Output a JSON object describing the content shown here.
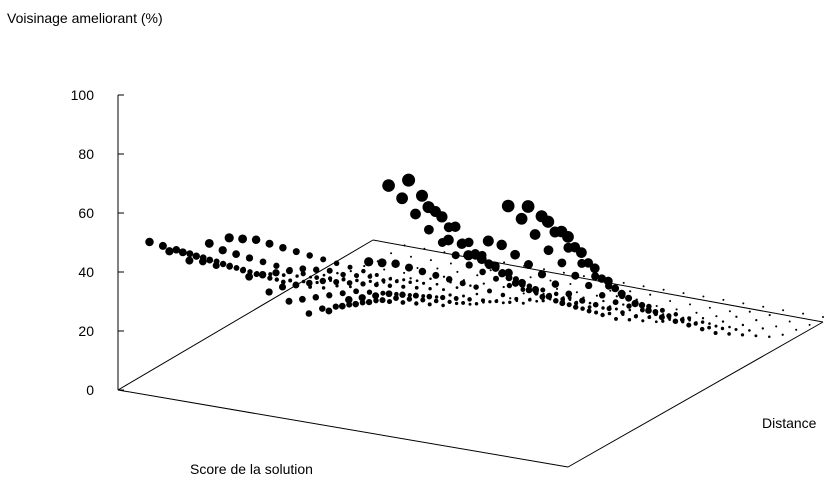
{
  "chart_data": {
    "type": "scatter",
    "title": "",
    "zlabel": "Voisinage ameliorant (%)",
    "xlabel": "Score de la solution",
    "ylabel": "Distance",
    "zlim": [
      0,
      100
    ],
    "zticks": [
      "0",
      "20",
      "40",
      "60",
      "80",
      "100"
    ],
    "grid": false,
    "legend": "none",
    "point_color": "#000000",
    "rows": [
      {
        "distance": 1,
        "values": [
          52,
          50,
          48,
          55,
          58,
          46,
          42,
          40,
          37,
          39,
          44,
          58,
          85,
          88,
          80,
          70,
          66,
          72,
          85,
          86,
          82,
          78
        ]
      },
      {
        "distance": 2,
        "values": [
          48,
          47,
          45,
          50,
          55,
          44,
          41,
          38,
          36,
          38,
          42,
          55,
          78,
          80,
          74,
          66,
          62,
          68,
          78,
          80,
          76,
          70
        ]
      },
      {
        "distance": 3,
        "values": [
          44,
          43,
          41,
          46,
          52,
          42,
          39,
          36,
          34,
          36,
          40,
          52,
          70,
          72,
          68,
          60,
          57,
          62,
          70,
          72,
          68,
          62
        ]
      },
      {
        "distance": 4,
        "values": [
          40,
          39,
          38,
          42,
          48,
          40,
          37,
          34,
          32,
          34,
          38,
          48,
          62,
          64,
          60,
          54,
          52,
          56,
          62,
          64,
          60,
          55
        ]
      },
      {
        "distance": 5,
        "values": [
          36,
          35,
          34,
          38,
          44,
          38,
          35,
          32,
          30,
          32,
          35,
          44,
          55,
          56,
          53,
          48,
          46,
          50,
          55,
          56,
          52,
          48
        ]
      },
      {
        "distance": 6,
        "values": [
          32,
          31,
          30,
          34,
          40,
          35,
          32,
          30,
          28,
          30,
          32,
          40,
          48,
          49,
          46,
          42,
          41,
          44,
          48,
          49,
          46,
          42
        ]
      },
      {
        "distance": 7,
        "values": [
          28,
          27,
          26,
          30,
          36,
          32,
          29,
          27,
          25,
          27,
          29,
          36,
          42,
          43,
          40,
          37,
          36,
          38,
          42,
          43,
          40,
          37
        ]
      },
      {
        "distance": 8,
        "values": [
          24,
          23,
          22,
          26,
          32,
          28,
          26,
          24,
          22,
          24,
          26,
          32,
          37,
          38,
          35,
          32,
          31,
          33,
          36,
          37,
          35,
          32
        ]
      },
      {
        "distance": 9,
        "values": [
          20,
          19,
          18,
          22,
          28,
          25,
          23,
          21,
          19,
          21,
          23,
          28,
          32,
          33,
          30,
          28,
          27,
          29,
          31,
          32,
          30,
          28
        ]
      },
      {
        "distance": 10,
        "values": [
          17,
          16,
          15,
          19,
          24,
          22,
          20,
          18,
          16,
          18,
          20,
          24,
          27,
          28,
          26,
          24,
          23,
          25,
          27,
          28,
          26,
          24
        ]
      },
      {
        "distance": 11,
        "values": [
          14,
          13,
          12,
          16,
          20,
          18,
          17,
          15,
          13,
          15,
          17,
          20,
          23,
          24,
          22,
          20,
          19,
          21,
          23,
          24,
          22,
          20
        ]
      },
      {
        "distance": 12,
        "values": [
          11,
          10,
          10,
          13,
          16,
          15,
          14,
          12,
          11,
          12,
          14,
          16,
          19,
          20,
          18,
          16,
          15,
          17,
          19,
          20,
          18,
          16
        ]
      },
      {
        "distance": 13,
        "values": [
          8,
          8,
          7,
          10,
          12,
          12,
          11,
          10,
          8,
          10,
          11,
          13,
          15,
          16,
          14,
          13,
          12,
          14,
          15,
          16,
          14,
          13
        ]
      },
      {
        "distance": 14,
        "values": [
          6,
          6,
          5,
          7,
          9,
          9,
          8,
          7,
          6,
          7,
          8,
          10,
          11,
          12,
          11,
          10,
          9,
          10,
          11,
          12,
          11,
          10
        ]
      },
      {
        "distance": 15,
        "values": [
          4,
          4,
          3,
          5,
          6,
          6,
          6,
          5,
          4,
          5,
          6,
          7,
          8,
          8,
          8,
          7,
          6,
          7,
          8,
          8,
          8,
          7
        ]
      },
      {
        "distance": 16,
        "values": [
          2,
          2,
          2,
          3,
          4,
          4,
          4,
          3,
          2,
          3,
          4,
          5,
          5,
          5,
          5,
          4,
          4,
          5,
          5,
          5,
          5,
          4
        ]
      },
      {
        "distance": 17,
        "values": [
          1,
          1,
          1,
          2,
          2,
          2,
          2,
          2,
          1,
          2,
          2,
          3,
          3,
          3,
          3,
          2,
          2,
          3,
          3,
          3,
          3,
          2
        ]
      },
      {
        "distance": 18,
        "values": [
          0,
          0,
          0,
          1,
          1,
          1,
          1,
          1,
          0,
          1,
          1,
          1,
          2,
          2,
          1,
          1,
          1,
          1,
          2,
          2,
          1,
          1
        ]
      },
      {
        "distance": 19,
        "values": [
          0,
          0,
          0,
          0,
          0,
          0,
          0,
          0,
          0,
          0,
          0,
          0,
          1,
          1,
          0,
          0,
          0,
          0,
          1,
          1,
          0,
          0
        ]
      },
      {
        "distance": 20,
        "values": [
          0,
          0,
          0,
          0,
          0,
          0,
          0,
          0,
          0,
          0,
          0,
          0,
          0,
          0,
          0,
          0,
          0,
          0,
          0,
          0,
          0,
          0
        ]
      }
    ]
  }
}
